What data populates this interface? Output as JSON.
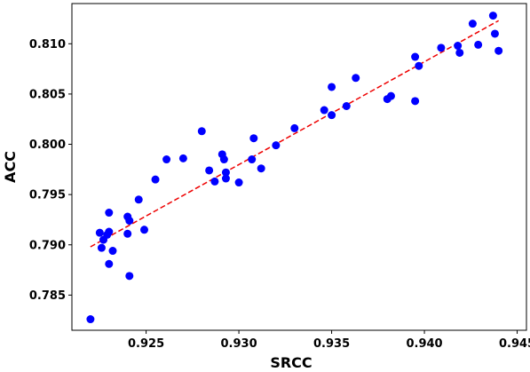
{
  "chart_data": {
    "type": "scatter",
    "title": "",
    "xlabel": "SRCC",
    "ylabel": "ACC",
    "xlim": [
      0.921,
      0.9455
    ],
    "ylim": [
      0.7815,
      0.814
    ],
    "xticks": [
      0.925,
      0.93,
      0.935,
      0.94,
      0.945
    ],
    "xtick_labels": [
      "0.925",
      "0.930",
      "0.935",
      "0.940",
      "0.945"
    ],
    "yticks": [
      0.785,
      0.79,
      0.795,
      0.8,
      0.805,
      0.81
    ],
    "ytick_labels": [
      "0.785",
      "0.790",
      "0.795",
      "0.800",
      "0.805",
      "0.810"
    ],
    "grid": false,
    "series": [
      {
        "marker_color": "#0000ff",
        "points": [
          [
            0.922,
            0.7826
          ],
          [
            0.9225,
            0.7912
          ],
          [
            0.9226,
            0.7897
          ],
          [
            0.9227,
            0.7905
          ],
          [
            0.9229,
            0.791
          ],
          [
            0.923,
            0.7913
          ],
          [
            0.923,
            0.7932
          ],
          [
            0.923,
            0.7881
          ],
          [
            0.9232,
            0.7894
          ],
          [
            0.924,
            0.7928
          ],
          [
            0.924,
            0.7911
          ],
          [
            0.9241,
            0.7924
          ],
          [
            0.9241,
            0.7869
          ],
          [
            0.9246,
            0.7945
          ],
          [
            0.9249,
            0.7915
          ],
          [
            0.9255,
            0.7965
          ],
          [
            0.9261,
            0.7985
          ],
          [
            0.927,
            0.7986
          ],
          [
            0.928,
            0.8013
          ],
          [
            0.9284,
            0.7974
          ],
          [
            0.9287,
            0.7963
          ],
          [
            0.9291,
            0.799
          ],
          [
            0.9292,
            0.7985
          ],
          [
            0.9293,
            0.7972
          ],
          [
            0.9293,
            0.7966
          ],
          [
            0.93,
            0.7962
          ],
          [
            0.9307,
            0.7985
          ],
          [
            0.9308,
            0.8006
          ],
          [
            0.9312,
            0.7976
          ],
          [
            0.932,
            0.7999
          ],
          [
            0.933,
            0.8016
          ],
          [
            0.9346,
            0.8034
          ],
          [
            0.935,
            0.8029
          ],
          [
            0.935,
            0.8057
          ],
          [
            0.9358,
            0.8038
          ],
          [
            0.9363,
            0.8066
          ],
          [
            0.938,
            0.8045
          ],
          [
            0.9382,
            0.8048
          ],
          [
            0.9395,
            0.8043
          ],
          [
            0.9395,
            0.8087
          ],
          [
            0.9397,
            0.8078
          ],
          [
            0.9409,
            0.8096
          ],
          [
            0.9418,
            0.8098
          ],
          [
            0.9419,
            0.8091
          ],
          [
            0.9426,
            0.812
          ],
          [
            0.9429,
            0.8099
          ],
          [
            0.9437,
            0.8128
          ],
          [
            0.9438,
            0.811
          ],
          [
            0.944,
            0.8093
          ]
        ]
      }
    ],
    "fit_line": {
      "color": "#ee0000",
      "style": "dashed",
      "points": [
        [
          0.922,
          0.7898
        ],
        [
          0.944,
          0.8123
        ]
      ]
    }
  }
}
